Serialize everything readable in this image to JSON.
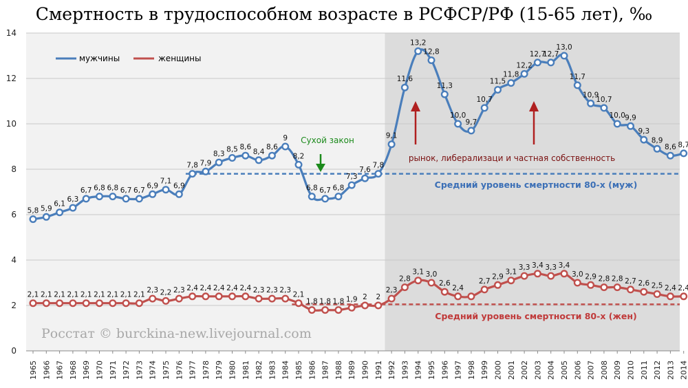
{
  "chart_data": {
    "type": "line",
    "title": "Смертность в трудоспособном возрасте в РСФСР/РФ (15-65 лет), ‰",
    "ylim": [
      0,
      14
    ],
    "yticks": [
      0,
      2,
      4,
      6,
      8,
      10,
      12,
      14
    ],
    "grid": true,
    "legend_position": "top-left",
    "x": [
      1965,
      1966,
      1967,
      1968,
      1969,
      1970,
      1971,
      1972,
      1973,
      1974,
      1975,
      1976,
      1977,
      1978,
      1979,
      1980,
      1981,
      1982,
      1983,
      1984,
      1985,
      1986,
      1987,
      1988,
      1989,
      1990,
      1991,
      1992,
      1993,
      1994,
      1995,
      1996,
      1997,
      1998,
      1999,
      2000,
      2001,
      2002,
      2003,
      2004,
      2005,
      2006,
      2007,
      2008,
      2009,
      2010,
      2011,
      2012,
      2013,
      2014
    ],
    "series": [
      {
        "name": "мужчины",
        "color": "#4a7ebb",
        "values": [
          5.8,
          5.9,
          6.1,
          6.3,
          6.7,
          6.8,
          6.8,
          6.7,
          6.7,
          6.9,
          7.1,
          6.9,
          7.8,
          7.9,
          8.3,
          8.5,
          8.6,
          8.4,
          8.6,
          9,
          8.2,
          6.8,
          6.7,
          6.8,
          7.3,
          7.6,
          7.8,
          9.1,
          11.6,
          13.2,
          12.8,
          11.3,
          10.0,
          9.7,
          10.7,
          11.5,
          11.8,
          12.2,
          12.7,
          12.7,
          13.0,
          11.7,
          10.9,
          10.7,
          10.0,
          9.9,
          9.3,
          8.9,
          8.6,
          8.7
        ],
        "labels": [
          "5,8",
          "5,9",
          "6,1",
          "6,3",
          "6,7",
          "6,8",
          "6,8",
          "6,7",
          "6,7",
          "6,9",
          "7,1",
          "6,9",
          "7,8",
          "7,9",
          "8,3",
          "8,5",
          "8,6",
          "8,4",
          "8,6",
          "9",
          "8,2",
          "6,8",
          "6,7",
          "6,8",
          "7,3",
          "7,6",
          "7,8",
          "9,1",
          "11,6",
          "13,2",
          "12,8",
          "11,3",
          "10,0",
          "9,7",
          "10,7",
          "11,5",
          "11,8",
          "12,2",
          "12,7",
          "12,7",
          "13,0",
          "11,7",
          "10,9",
          "10,7",
          "10,0",
          "9,9",
          "9,3",
          "8,9",
          "8,6",
          "8,7"
        ]
      },
      {
        "name": "женщины",
        "color": "#c0504d",
        "values": [
          2.1,
          2.1,
          2.1,
          2.1,
          2.1,
          2.1,
          2.1,
          2.1,
          2.1,
          2.3,
          2.2,
          2.3,
          2.4,
          2.4,
          2.4,
          2.4,
          2.4,
          2.3,
          2.3,
          2.3,
          2.1,
          1.8,
          1.8,
          1.8,
          1.9,
          2,
          2,
          2.3,
          2.8,
          3.1,
          3.0,
          2.6,
          2.4,
          2.4,
          2.7,
          2.9,
          3.1,
          3.3,
          3.4,
          3.3,
          3.4,
          3.0,
          2.9,
          2.8,
          2.8,
          2.7,
          2.6,
          2.5,
          2.4,
          2.4
        ],
        "labels": [
          "2,1",
          "2,1",
          "2,1",
          "2,1",
          "2,1",
          "2,1",
          "2,1",
          "2,1",
          "2,1",
          "2,3",
          "2,2",
          "2,3",
          "2,4",
          "2,4",
          "2,4",
          "2,4",
          "2,4",
          "2,3",
          "2,3",
          "2,3",
          "2,1",
          "1,8",
          "1,8",
          "1,8",
          "1,9",
          "2",
          "2",
          "2,3",
          "2,8",
          "3,1",
          "3,0",
          "2,6",
          "2,4",
          "",
          "2,7",
          "2,9",
          "3,1",
          "3,3",
          "3,4",
          "3,3",
          "3,4",
          "3,0",
          "2,9",
          "2,8",
          "2,8",
          "2,7",
          "2,6",
          "2,5",
          "2,4",
          "2,4"
        ]
      }
    ],
    "reference_lines": [
      {
        "label": "Средний уровень смертности 80-х (муж)",
        "value": 7.8,
        "color": "#4a7ebb"
      },
      {
        "label": "Средний уровень смертности 80-х (жен)",
        "value": 2.05,
        "color": "#c0504d"
      }
    ],
    "shaded_region": {
      "from": 1992,
      "to": 2014
    },
    "annotations": {
      "dry_law": "Сухой закон",
      "market": "рынок, либерализаци и частная собственность"
    },
    "watermark": "Росстат © burckina-new.livejournal.com"
  }
}
